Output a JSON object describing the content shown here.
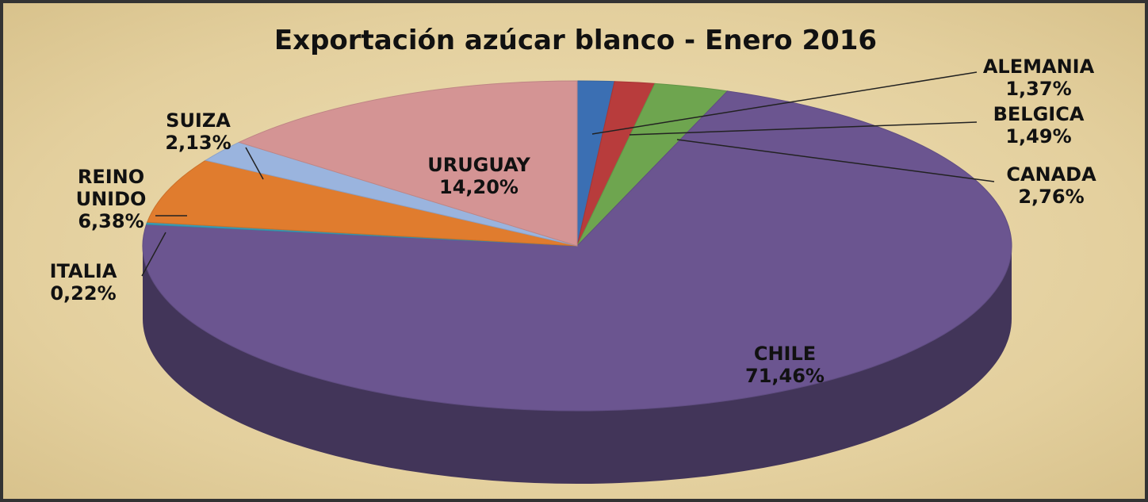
{
  "chart_data": {
    "type": "pie",
    "title": "Exportación azúcar blanco - Enero 2016",
    "categories": [
      "ALEMANIA",
      "BELGICA",
      "CANADA",
      "CHILE",
      "ITALIA",
      "REINO UNIDO",
      "SUIZA",
      "URUGUAY"
    ],
    "values": [
      1.37,
      1.49,
      2.76,
      71.46,
      0.22,
      6.38,
      2.13,
      14.2
    ],
    "value_labels": [
      "1,37%",
      "1,49%",
      "2,76%",
      "71,46%",
      "0,22%",
      "6,38%",
      "2,13%",
      "14,20%"
    ],
    "colors": [
      "#3b6fb3",
      "#b83c3c",
      "#6ea54f",
      "#6b5590",
      "#3a9bb5",
      "#e07c2e",
      "#9ab4de",
      "#d49494"
    ]
  }
}
